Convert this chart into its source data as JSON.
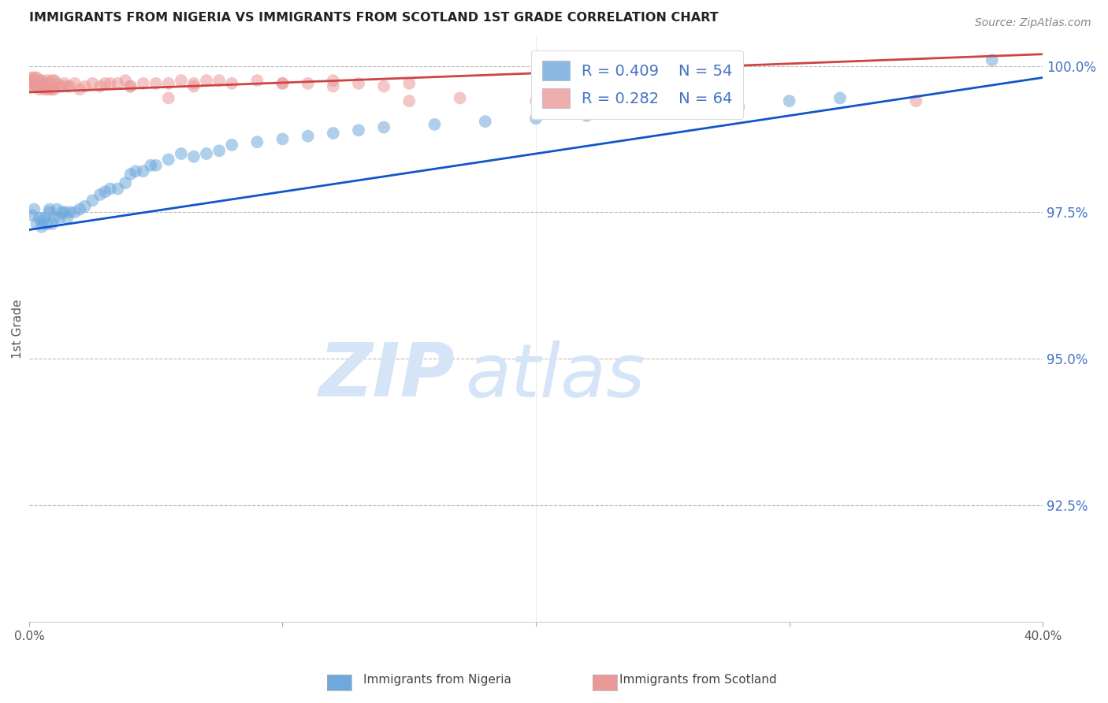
{
  "title": "IMMIGRANTS FROM NIGERIA VS IMMIGRANTS FROM SCOTLAND 1ST GRADE CORRELATION CHART",
  "source": "Source: ZipAtlas.com",
  "ylabel": "1st Grade",
  "ytick_labels": [
    "100.0%",
    "97.5%",
    "95.0%",
    "92.5%"
  ],
  "ytick_values": [
    1.0,
    0.975,
    0.95,
    0.925
  ],
  "xlim": [
    0.0,
    0.4
  ],
  "ylim": [
    0.905,
    1.005
  ],
  "nigeria_R": 0.409,
  "nigeria_N": 54,
  "scotland_R": 0.282,
  "scotland_N": 64,
  "nigeria_color": "#6fa8dc",
  "scotland_color": "#ea9999",
  "nigeria_line_color": "#1155cc",
  "scotland_line_color": "#cc4444",
  "watermark_color": "#d6e4f7",
  "nigeria_x": [
    0.001,
    0.002,
    0.003,
    0.004,
    0.005,
    0.005,
    0.006,
    0.007,
    0.008,
    0.008,
    0.009,
    0.01,
    0.011,
    0.012,
    0.013,
    0.014,
    0.015,
    0.016,
    0.018,
    0.02,
    0.022,
    0.025,
    0.028,
    0.03,
    0.032,
    0.035,
    0.038,
    0.04,
    0.042,
    0.045,
    0.048,
    0.05,
    0.055,
    0.06,
    0.065,
    0.07,
    0.075,
    0.08,
    0.09,
    0.1,
    0.11,
    0.12,
    0.13,
    0.14,
    0.16,
    0.18,
    0.2,
    0.22,
    0.24,
    0.26,
    0.28,
    0.3,
    0.32,
    0.38
  ],
  "nigeria_y": [
    0.9745,
    0.9755,
    0.973,
    0.974,
    0.9725,
    0.9735,
    0.974,
    0.973,
    0.975,
    0.9755,
    0.973,
    0.974,
    0.9755,
    0.974,
    0.975,
    0.975,
    0.974,
    0.975,
    0.975,
    0.9755,
    0.976,
    0.977,
    0.978,
    0.9785,
    0.979,
    0.979,
    0.98,
    0.9815,
    0.982,
    0.982,
    0.983,
    0.983,
    0.984,
    0.985,
    0.9845,
    0.985,
    0.9855,
    0.9865,
    0.987,
    0.9875,
    0.988,
    0.9885,
    0.989,
    0.9895,
    0.99,
    0.9905,
    0.991,
    0.9915,
    0.992,
    0.9925,
    0.993,
    0.994,
    0.9945,
    1.001
  ],
  "scotland_x": [
    0.0,
    0.0,
    0.0,
    0.001,
    0.001,
    0.001,
    0.002,
    0.002,
    0.003,
    0.003,
    0.004,
    0.004,
    0.005,
    0.005,
    0.006,
    0.006,
    0.007,
    0.007,
    0.008,
    0.008,
    0.009,
    0.009,
    0.01,
    0.01,
    0.011,
    0.012,
    0.013,
    0.014,
    0.015,
    0.016,
    0.018,
    0.02,
    0.022,
    0.025,
    0.028,
    0.03,
    0.032,
    0.035,
    0.038,
    0.04,
    0.045,
    0.05,
    0.055,
    0.06,
    0.065,
    0.07,
    0.075,
    0.08,
    0.09,
    0.1,
    0.11,
    0.12,
    0.13,
    0.14,
    0.15,
    0.17,
    0.2,
    0.04,
    0.055,
    0.065,
    0.1,
    0.12,
    0.15,
    0.35
  ],
  "scotland_y": [
    0.9975,
    0.997,
    0.9965,
    0.998,
    0.9975,
    0.997,
    0.998,
    0.9965,
    0.998,
    0.9965,
    0.9975,
    0.996,
    0.9975,
    0.9965,
    0.997,
    0.996,
    0.9975,
    0.996,
    0.997,
    0.996,
    0.9975,
    0.996,
    0.9975,
    0.996,
    0.997,
    0.9965,
    0.9965,
    0.997,
    0.9965,
    0.9965,
    0.997,
    0.996,
    0.9965,
    0.997,
    0.9965,
    0.997,
    0.997,
    0.997,
    0.9975,
    0.9965,
    0.997,
    0.997,
    0.997,
    0.9975,
    0.997,
    0.9975,
    0.9975,
    0.997,
    0.9975,
    0.997,
    0.997,
    0.9965,
    0.997,
    0.9965,
    0.997,
    0.9945,
    0.994,
    0.9965,
    0.9945,
    0.9965,
    0.997,
    0.9975,
    0.994,
    0.994
  ],
  "nigeria_line_x": [
    0.0,
    0.4
  ],
  "nigeria_line_y": [
    0.972,
    0.998
  ],
  "scotland_line_x": [
    0.0,
    0.4
  ],
  "scotland_line_y": [
    0.9955,
    1.002
  ]
}
